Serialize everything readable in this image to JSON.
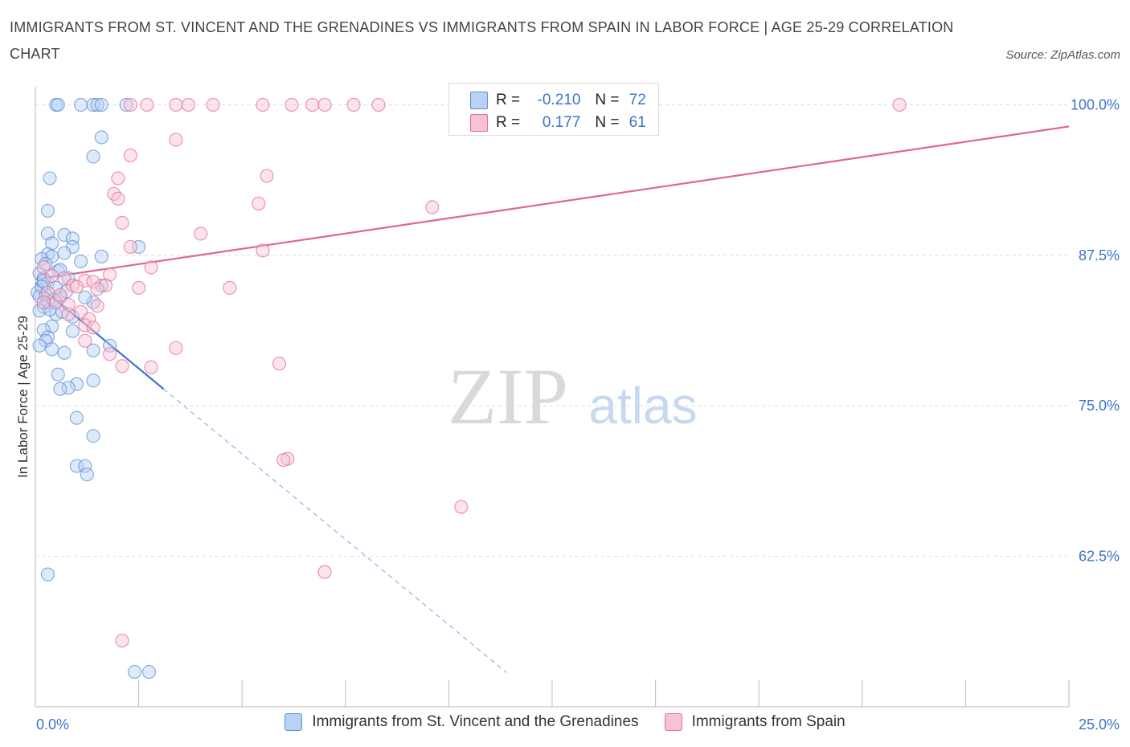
{
  "title": "IMMIGRANTS FROM ST. VINCENT AND THE GRENADINES VS IMMIGRANTS FROM SPAIN IN LABOR FORCE | AGE 25-29 CORRELATION CHART",
  "source": "Source: ZipAtlas.com",
  "watermark": {
    "zip": "ZIP",
    "atlas": "atlas"
  },
  "colors": {
    "blue": "#5b8fd9",
    "blue_fill": "#b9d1f2",
    "pink": "#e46b96",
    "pink_fill": "#f6c3d4",
    "axis_text": "#3b74c9"
  },
  "legend": {
    "r_label": "R =",
    "n_label": "N =",
    "series": [
      {
        "r": "-0.210",
        "n": "72"
      },
      {
        "r": "0.177",
        "n": "61"
      }
    ]
  },
  "chart_data": {
    "type": "scatter",
    "title": "IMMIGRANTS FROM ST. VINCENT AND THE GRENADINES VS IMMIGRANTS FROM SPAIN IN LABOR FORCE | AGE 25-29 CORRELATION CHART",
    "xlabel": "",
    "ylabel": "In Labor Force | Age 25-29",
    "xlim": [
      0,
      25
    ],
    "ylim": [
      50,
      101.5
    ],
    "x_tick_labels": [
      "0.0%",
      "25.0%"
    ],
    "y_tick_values": [
      62.5,
      75.0,
      87.5,
      100.0
    ],
    "y_tick_labels": [
      "62.5%",
      "75.0%",
      "87.5%",
      "100.0%"
    ],
    "grid": true,
    "legend_position": "top-center",
    "series": [
      {
        "name": "Immigrants from St. Vincent and the Grenadines",
        "color": "#5b8fd9",
        "trend": {
          "x0": 0.0,
          "y0": 85.2,
          "x1": 3.1,
          "y1": 76.4,
          "dashed_to_x": 11.4
        },
        "points": [
          [
            0.5,
            100
          ],
          [
            0.55,
            100
          ],
          [
            1.1,
            100
          ],
          [
            1.4,
            100
          ],
          [
            1.5,
            100
          ],
          [
            1.6,
            100
          ],
          [
            2.2,
            100
          ],
          [
            1.6,
            97.3
          ],
          [
            1.4,
            95.7
          ],
          [
            0.35,
            93.9
          ],
          [
            0.3,
            91.2
          ],
          [
            0.3,
            89.3
          ],
          [
            0.7,
            89.2
          ],
          [
            0.4,
            88.5
          ],
          [
            0.9,
            88.9
          ],
          [
            0.9,
            88.2
          ],
          [
            2.5,
            88.2
          ],
          [
            0.3,
            87.6
          ],
          [
            0.4,
            87.4
          ],
          [
            0.7,
            87.7
          ],
          [
            1.6,
            87.4
          ],
          [
            0.15,
            87.2
          ],
          [
            1.1,
            87.0
          ],
          [
            0.55,
            86.2
          ],
          [
            0.6,
            86.3
          ],
          [
            0.1,
            86.0
          ],
          [
            0.2,
            85.6
          ],
          [
            0.3,
            85.2
          ],
          [
            1.6,
            85.0
          ],
          [
            0.05,
            84.4
          ],
          [
            0.1,
            84.1
          ],
          [
            0.25,
            84.2
          ],
          [
            0.6,
            84.0
          ],
          [
            0.3,
            83.6
          ],
          [
            0.2,
            83.2
          ],
          [
            1.4,
            83.6
          ],
          [
            0.1,
            82.9
          ],
          [
            0.5,
            82.6
          ],
          [
            0.9,
            82.4
          ],
          [
            0.4,
            81.6
          ],
          [
            0.2,
            81.3
          ],
          [
            0.9,
            81.2
          ],
          [
            0.3,
            80.7
          ],
          [
            0.25,
            80.4
          ],
          [
            0.1,
            80.0
          ],
          [
            1.8,
            80.0
          ],
          [
            0.4,
            79.7
          ],
          [
            1.4,
            79.6
          ],
          [
            0.7,
            79.4
          ],
          [
            0.55,
            77.6
          ],
          [
            1.4,
            77.1
          ],
          [
            1.0,
            76.8
          ],
          [
            0.8,
            76.5
          ],
          [
            0.6,
            76.4
          ],
          [
            1.0,
            74.0
          ],
          [
            1.4,
            72.5
          ],
          [
            1.0,
            70.0
          ],
          [
            1.2,
            70.0
          ],
          [
            1.25,
            69.3
          ],
          [
            0.3,
            61.0
          ],
          [
            2.4,
            52.9
          ],
          [
            2.75,
            52.9
          ],
          [
            0.2,
            85.4
          ],
          [
            0.5,
            84.8
          ],
          [
            0.35,
            83.0
          ],
          [
            0.8,
            85.6
          ],
          [
            0.15,
            84.9
          ],
          [
            0.65,
            82.8
          ],
          [
            0.45,
            83.8
          ],
          [
            1.2,
            84.0
          ],
          [
            0.25,
            86.8
          ],
          [
            0.75,
            84.5
          ]
        ]
      },
      {
        "name": "Immigrants from Spain",
        "color": "#e46b96",
        "trend": {
          "x0": 0.0,
          "y0": 85.5,
          "x1": 25.0,
          "y1": 98.2
        },
        "points": [
          [
            2.3,
            100
          ],
          [
            2.7,
            100
          ],
          [
            3.4,
            100
          ],
          [
            3.7,
            100
          ],
          [
            4.3,
            100
          ],
          [
            5.5,
            100
          ],
          [
            6.2,
            100
          ],
          [
            6.7,
            100
          ],
          [
            7.0,
            100
          ],
          [
            7.7,
            100
          ],
          [
            8.3,
            100
          ],
          [
            10.2,
            100
          ],
          [
            12.8,
            100
          ],
          [
            20.9,
            100
          ],
          [
            3.4,
            97.1
          ],
          [
            2.3,
            95.8
          ],
          [
            2.0,
            93.9
          ],
          [
            5.6,
            94.1
          ],
          [
            1.9,
            92.6
          ],
          [
            2.0,
            92.2
          ],
          [
            5.4,
            91.8
          ],
          [
            9.6,
            91.5
          ],
          [
            2.1,
            90.2
          ],
          [
            4.0,
            89.3
          ],
          [
            2.3,
            88.2
          ],
          [
            5.5,
            87.9
          ],
          [
            2.8,
            86.5
          ],
          [
            0.2,
            86.5
          ],
          [
            1.8,
            85.9
          ],
          [
            0.7,
            85.6
          ],
          [
            1.2,
            85.4
          ],
          [
            1.4,
            85.3
          ],
          [
            1.7,
            85.0
          ],
          [
            0.9,
            85.0
          ],
          [
            2.5,
            84.8
          ],
          [
            4.7,
            84.8
          ],
          [
            0.3,
            84.4
          ],
          [
            1.5,
            84.7
          ],
          [
            0.2,
            83.6
          ],
          [
            0.5,
            83.6
          ],
          [
            0.8,
            83.4
          ],
          [
            1.5,
            83.3
          ],
          [
            1.1,
            82.8
          ],
          [
            0.8,
            82.6
          ],
          [
            1.3,
            82.2
          ],
          [
            1.2,
            81.7
          ],
          [
            1.4,
            81.5
          ],
          [
            1.2,
            80.4
          ],
          [
            3.4,
            79.8
          ],
          [
            1.8,
            79.3
          ],
          [
            5.9,
            78.5
          ],
          [
            2.1,
            78.3
          ],
          [
            2.8,
            78.2
          ],
          [
            6.1,
            70.6
          ],
          [
            6.0,
            70.5
          ],
          [
            10.3,
            66.6
          ],
          [
            7.0,
            61.2
          ],
          [
            2.1,
            55.5
          ],
          [
            0.4,
            85.8
          ],
          [
            0.6,
            84.2
          ],
          [
            1.0,
            84.9
          ]
        ]
      }
    ]
  },
  "bottom_legend": {
    "items": [
      {
        "label": "Immigrants from St. Vincent and the Grenadines"
      },
      {
        "label": "Immigrants from Spain"
      }
    ]
  }
}
